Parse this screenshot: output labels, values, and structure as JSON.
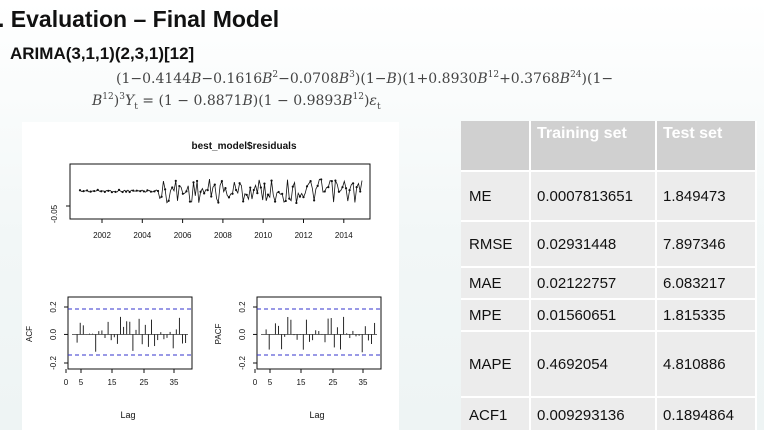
{
  "slide": {
    "title": ". Evaluation – Final Model",
    "model": "ARIMA(3,1,1)(2,3,1)[12]"
  },
  "colors": {
    "acf_bound": "#3333cc",
    "header_bg": "#d0d0d0",
    "row_bg": "#ececec"
  },
  "residual_plot": {
    "title": "best_model$residuals",
    "y_tick": "-0.05",
    "x_ticks": [
      "2002",
      "2004",
      "2006",
      "2008",
      "2010",
      "2012",
      "2014"
    ]
  },
  "acf_plot": {
    "ylabel": "ACF",
    "y_ticks": [
      "0.2",
      "0.0",
      "-0.2"
    ],
    "x_ticks": [
      "0",
      "5",
      "15",
      "25",
      "35"
    ],
    "xlabel": "Lag"
  },
  "pacf_plot": {
    "ylabel": "PACF",
    "y_ticks": [
      "0.2",
      "0.0",
      "-0.2"
    ],
    "x_ticks": [
      "0",
      "5",
      "15",
      "25",
      "35"
    ],
    "xlabel": "Lag"
  },
  "table": {
    "headers": [
      "",
      "Training set",
      "Test set"
    ],
    "rows": [
      {
        "label": "ME",
        "train": "0.0007813651",
        "test": "1.849473"
      },
      {
        "label": "RMSE",
        "train": "0.02931448",
        "test": "7.897346"
      },
      {
        "label": "MAE",
        "train": "0.02122757",
        "test": "6.083217"
      },
      {
        "label": "MPE",
        "train": "0.01560651",
        "test": "1.815335"
      },
      {
        "label": "MAPE",
        "train": "0.4692054",
        "test": "4.810886"
      },
      {
        "label": "ACF1",
        "train": "0.009293136",
        "test": "0.1894864"
      }
    ]
  }
}
